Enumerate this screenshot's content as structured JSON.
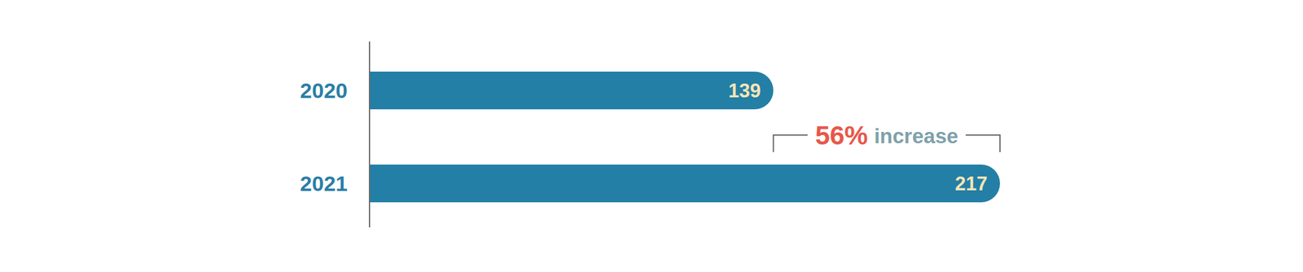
{
  "chart_data": {
    "type": "bar",
    "orientation": "horizontal",
    "categories": [
      "2020",
      "2021"
    ],
    "values": [
      139,
      217
    ],
    "color": "#237fa6",
    "xlim": [
      0,
      217
    ],
    "data_labels": true,
    "tick_labels": "y",
    "grid": false,
    "annotation": {
      "highlight": "56%",
      "text": "increase"
    }
  }
}
